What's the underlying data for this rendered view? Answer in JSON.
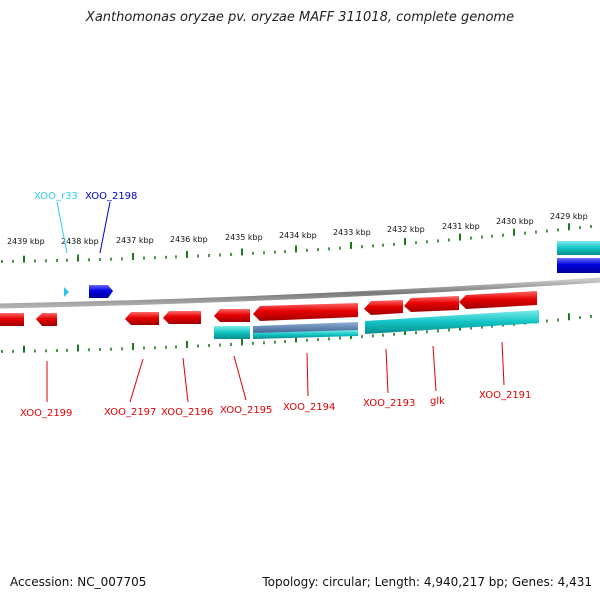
{
  "title": "Xanthomonas oryzae pv. oryzae MAFF 311018, complete genome",
  "footer": {
    "accession": "Accession: NC_007705",
    "info": "Topology: circular; Length: 4,940,217 bp; Genes: 4,431"
  },
  "colors": {
    "backbone": "#8a8a8a",
    "tick": "#1f7a1f",
    "reverse_cds": "#e60000",
    "forward_cds": "#0000dd",
    "rna": "#2ec4e6",
    "feature_teal": "#12c4c4",
    "feature_slate": "#5a7fa8",
    "label_red": "#e00000",
    "label_blue": "#0000cc",
    "label_cyan": "#33ccee"
  },
  "scale_labels": [
    {
      "text": "2439 kbp"
    },
    {
      "text": "2438 kbp"
    },
    {
      "text": "2437 kbp"
    },
    {
      "text": "2436 kbp"
    },
    {
      "text": "2435 kbp"
    },
    {
      "text": "2434 kbp"
    },
    {
      "text": "2433 kbp"
    },
    {
      "text": "2432 kbp"
    },
    {
      "text": "2431 kbp"
    },
    {
      "text": "2430 kbp"
    },
    {
      "text": "2429 kbp"
    }
  ],
  "gene_labels": [
    {
      "text": "XOO_r33",
      "color": "#33ccee"
    },
    {
      "text": "XOO_2198",
      "color": "#0000cc"
    },
    {
      "text": "XOO_2199",
      "color": "#e00000"
    },
    {
      "text": "XOO_2197",
      "color": "#e00000"
    },
    {
      "text": "XOO_2196",
      "color": "#e00000"
    },
    {
      "text": "XOO_2195",
      "color": "#e00000"
    },
    {
      "text": "XOO_2194",
      "color": "#e00000"
    },
    {
      "text": "XOO_2193",
      "color": "#e00000"
    },
    {
      "text": "glk",
      "color": "#e00000"
    },
    {
      "text": "XOO_2191",
      "color": "#e00000"
    }
  ]
}
